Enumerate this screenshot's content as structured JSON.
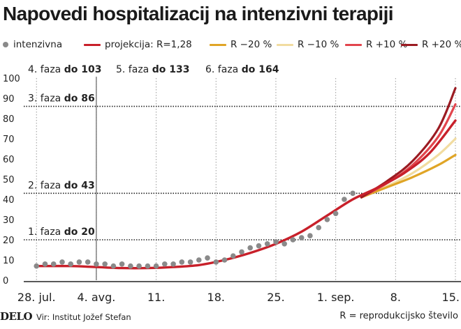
{
  "chart_data": {
    "type": "line",
    "title": "Napovedi hospitalizacij na intenzivni terapiji",
    "xlabel": "",
    "ylabel": "",
    "x_start": "2020-07-27",
    "x_end": "2020-09-15",
    "x_tick_labels": [
      "28. jul.",
      "4. avg.",
      "11.",
      "18.",
      "25.",
      "1. sep.",
      "8.",
      "15."
    ],
    "x_tick_dates": [
      "2020-07-28",
      "2020-08-04",
      "2020-08-11",
      "2020-08-18",
      "2020-08-25",
      "2020-09-01",
      "2020-09-08",
      "2020-09-15"
    ],
    "ylim": [
      0,
      100
    ],
    "y_ticks": [
      0,
      10,
      20,
      30,
      40,
      50,
      60,
      70,
      80,
      90,
      100
    ],
    "grid": "vertical dashed at each x tick",
    "thresholds": [
      {
        "value": 20,
        "label": "1. faza",
        "label_bold": "do 20"
      },
      {
        "value": 43,
        "label": "2. faza",
        "label_bold": "do 43"
      },
      {
        "value": 86,
        "label": "3. faza",
        "label_bold": "do 86"
      }
    ],
    "top_phase_labels": [
      {
        "label": "4. faza",
        "label_bold": "do 103"
      },
      {
        "label": "5. faza",
        "label_bold": "do 133"
      },
      {
        "label": "6. faza",
        "label_bold": "do 164"
      }
    ],
    "series": [
      {
        "name": "intenzivna",
        "kind": "points",
        "color": "#8a8a8a",
        "points": [
          [
            "2020-07-28",
            7
          ],
          [
            "2020-07-29",
            8
          ],
          [
            "2020-07-30",
            8
          ],
          [
            "2020-07-31",
            9
          ],
          [
            "2020-08-01",
            8
          ],
          [
            "2020-08-02",
            9
          ],
          [
            "2020-08-03",
            9
          ],
          [
            "2020-08-04",
            8
          ],
          [
            "2020-08-05",
            8
          ],
          [
            "2020-08-06",
            7
          ],
          [
            "2020-08-07",
            8
          ],
          [
            "2020-08-08",
            7
          ],
          [
            "2020-08-09",
            7
          ],
          [
            "2020-08-10",
            7
          ],
          [
            "2020-08-11",
            7
          ],
          [
            "2020-08-12",
            8
          ],
          [
            "2020-08-13",
            8
          ],
          [
            "2020-08-14",
            9
          ],
          [
            "2020-08-15",
            9
          ],
          [
            "2020-08-16",
            10
          ],
          [
            "2020-08-17",
            11
          ],
          [
            "2020-08-18",
            9
          ],
          [
            "2020-08-19",
            10
          ],
          [
            "2020-08-20",
            12
          ],
          [
            "2020-08-21",
            14
          ],
          [
            "2020-08-22",
            16
          ],
          [
            "2020-08-23",
            17
          ],
          [
            "2020-08-24",
            18
          ],
          [
            "2020-08-25",
            19
          ],
          [
            "2020-08-26",
            18
          ],
          [
            "2020-08-27",
            20
          ],
          [
            "2020-08-28",
            21
          ],
          [
            "2020-08-29",
            22
          ],
          [
            "2020-08-30",
            26
          ],
          [
            "2020-08-31",
            30
          ],
          [
            "2020-09-01",
            33
          ],
          [
            "2020-09-02",
            40
          ],
          [
            "2020-09-03",
            43
          ]
        ]
      },
      {
        "name": "projekcija: R=1,28",
        "kind": "line",
        "color": "#c8202a",
        "points": [
          [
            "2020-07-28",
            7
          ],
          [
            "2020-08-01",
            7
          ],
          [
            "2020-08-04",
            6.5
          ],
          [
            "2020-08-07",
            6
          ],
          [
            "2020-08-10",
            6
          ],
          [
            "2020-08-13",
            6.5
          ],
          [
            "2020-08-16",
            7.5
          ],
          [
            "2020-08-19",
            10
          ],
          [
            "2020-08-22",
            13.5
          ],
          [
            "2020-08-25",
            18
          ],
          [
            "2020-08-28",
            24
          ],
          [
            "2020-08-31",
            32
          ],
          [
            "2020-09-03",
            40
          ],
          [
            "2020-09-06",
            46
          ],
          [
            "2020-09-09",
            53
          ],
          [
            "2020-09-12",
            63
          ],
          [
            "2020-09-15",
            79
          ]
        ]
      },
      {
        "name": "R −20 %",
        "kind": "line",
        "color": "#e0a526",
        "points": [
          [
            "2020-09-04",
            41
          ],
          [
            "2020-09-07",
            46
          ],
          [
            "2020-09-10",
            51
          ],
          [
            "2020-09-13",
            57
          ],
          [
            "2020-09-15",
            62
          ]
        ]
      },
      {
        "name": "R −10 %",
        "kind": "line",
        "color": "#f1dca0",
        "points": [
          [
            "2020-09-04",
            41
          ],
          [
            "2020-09-07",
            46.5
          ],
          [
            "2020-09-10",
            53
          ],
          [
            "2020-09-13",
            62
          ],
          [
            "2020-09-15",
            70
          ]
        ]
      },
      {
        "name": "R +10 %",
        "kind": "line",
        "color": "#e2454d",
        "points": [
          [
            "2020-09-04",
            41
          ],
          [
            "2020-09-07",
            48
          ],
          [
            "2020-09-10",
            57
          ],
          [
            "2020-09-13",
            71
          ],
          [
            "2020-09-15",
            87
          ]
        ]
      },
      {
        "name": "R +20 %",
        "kind": "line",
        "color": "#9b1b22",
        "points": [
          [
            "2020-09-04",
            41
          ],
          [
            "2020-09-07",
            49
          ],
          [
            "2020-09-10",
            59
          ],
          [
            "2020-09-13",
            75
          ],
          [
            "2020-09-15",
            95
          ]
        ]
      }
    ]
  },
  "footer": {
    "logo": "DELO",
    "source": "Vir: Institut Jožef Stefan",
    "note": "R = reprodukcijsko število"
  }
}
